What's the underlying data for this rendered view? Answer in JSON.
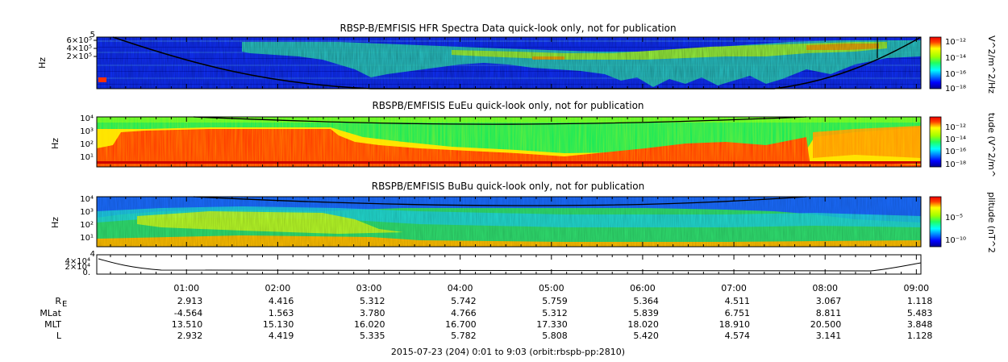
{
  "chart_data": {
    "type": "heatmap",
    "panels": [
      {
        "id": "hfr",
        "title": "RBSP-B/EMFISIS  HFR Spectra Data quick-look only, not for publication",
        "ylabel": "Hz",
        "yticks": [
          "6×10⁵",
          "4×10⁵",
          "2×10⁵"
        ],
        "ytick_top": "5",
        "colorbar_label": "V^2/m^2/Hz",
        "colorbar_ticks": [
          "10⁻¹²",
          "10⁻¹⁴",
          "10⁻¹⁶",
          "10⁻¹⁸"
        ],
        "colorbar_range": [
          -18,
          -12
        ]
      },
      {
        "id": "eueu",
        "title": "RBSPB/EMFISIS  EuEu quick-look only, not for publication",
        "ylabel": "Hz",
        "yticks": [
          "10⁴",
          "10³",
          "10²",
          "10¹"
        ],
        "colorbar_label": "tude (V^2/m^",
        "colorbar_ticks": [
          "10⁻¹²",
          "10⁻¹⁴",
          "10⁻¹⁶",
          "10⁻¹⁸"
        ],
        "colorbar_range": [
          -18,
          -12
        ]
      },
      {
        "id": "bubu",
        "title": "RBSPB/EMFISIS  BuBu quick-look only, not for publication",
        "ylabel": "Hz",
        "yticks": [
          "10⁴",
          "10³",
          "10²",
          "10¹"
        ],
        "colorbar_label": "plitude (nT^2",
        "colorbar_ticks": [
          "10⁻⁵",
          "10⁻¹⁰"
        ],
        "colorbar_range": [
          -12,
          -2
        ]
      },
      {
        "id": "line",
        "title": "",
        "yticks": [
          "4×10⁴",
          "2×10⁴",
          "0."
        ],
        "ytick_top": "4"
      }
    ],
    "x_axis": {
      "labels": [
        "01:00",
        "02:00",
        "03:00",
        "04:00",
        "05:00",
        "06:00",
        "07:00",
        "08:00",
        "09:00"
      ],
      "hours": [
        1,
        2,
        3,
        4,
        5,
        6,
        7,
        8,
        9
      ],
      "range_hours": [
        0.0167,
        9.05
      ]
    },
    "ephemeris": [
      {
        "name": "RE",
        "label": "R",
        "sub": "E",
        "values": [
          "2.913",
          "4.416",
          "5.312",
          "5.742",
          "5.759",
          "5.364",
          "4.511",
          "3.067",
          "1.118"
        ]
      },
      {
        "name": "MLat",
        "label": "MLat",
        "values": [
          "-4.564",
          "1.563",
          "3.780",
          "4.766",
          "5.312",
          "5.839",
          "6.751",
          "8.811",
          "5.483"
        ]
      },
      {
        "name": "MLT",
        "label": "MLT",
        "values": [
          "13.510",
          "15.130",
          "16.020",
          "16.700",
          "17.330",
          "18.020",
          "18.910",
          "20.500",
          "3.848"
        ]
      },
      {
        "name": "L",
        "label": "L",
        "values": [
          "2.932",
          "4.419",
          "5.335",
          "5.782",
          "5.808",
          "5.420",
          "4.574",
          "3.141",
          "1.128"
        ]
      }
    ],
    "footer": "2015-07-23 (204) 0:01 to 9:03 (orbit:rbspb-pp:2810)"
  }
}
